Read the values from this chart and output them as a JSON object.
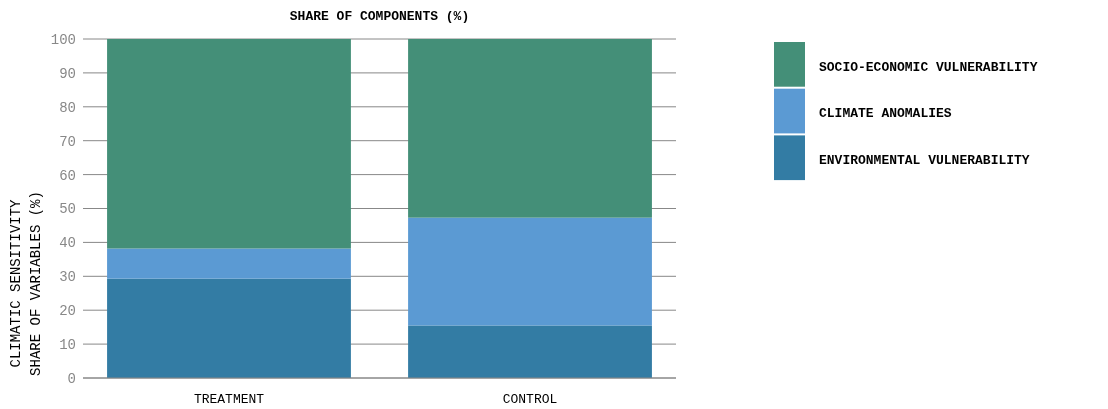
{
  "chart_data": {
    "type": "bar",
    "title": "SHARE OF COMPONENTS (%)",
    "ylabel": "CLIMATIC SENSITIVITY\nSHARE OF VARIABLES (%)",
    "categories": [
      "TREATMENT",
      "CONTROL"
    ],
    "stacked": true,
    "series": [
      {
        "name": "ENVIRONMENTAL VULNERABILITY",
        "color": "#337ca4",
        "values": [
          29.3,
          15.5
        ]
      },
      {
        "name": "CLIMATE ANOMALIES",
        "color": "#5b9ad3",
        "values": [
          8.9,
          31.8
        ]
      },
      {
        "name": "SOCIO-ECONOMIC VULNERABILITY",
        "color": "#448f78",
        "values": [
          61.8,
          52.7
        ]
      }
    ],
    "ylim": [
      0,
      100
    ],
    "yticks": [
      0,
      10,
      20,
      30,
      40,
      50,
      60,
      70,
      80,
      90,
      100
    ],
    "grid": "y",
    "legend": "right"
  }
}
